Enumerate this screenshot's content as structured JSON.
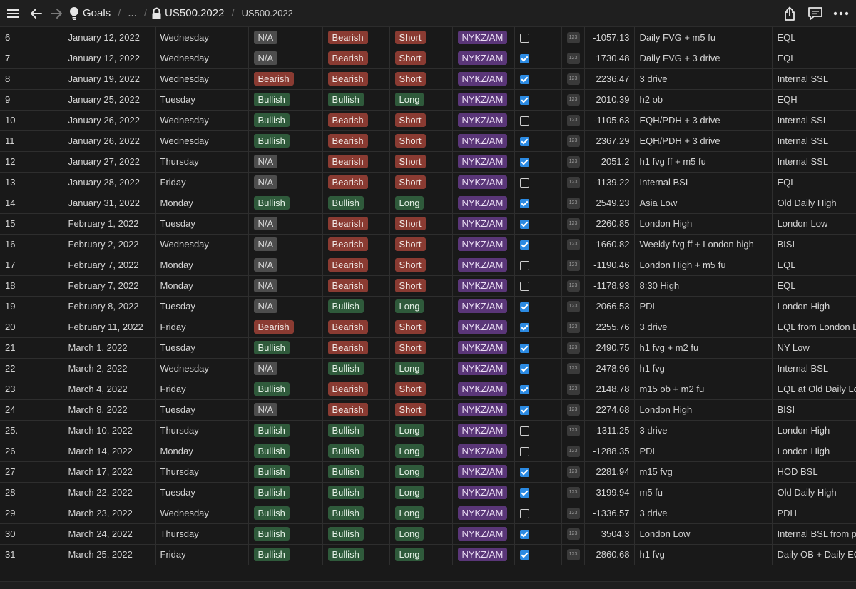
{
  "header": {
    "breadcrumb": [
      "Goals",
      "...",
      "US500.2022",
      "US500.2022"
    ],
    "icons": [
      "menu-icon",
      "back-arrow-icon",
      "forward-arrow-icon",
      "lightbulb-icon",
      "lock-icon",
      "share-icon",
      "comment-icon",
      "more-icon"
    ]
  },
  "colors": {
    "background": "#191919",
    "bearish": "#8a3b32",
    "bullish": "#2f5a3b",
    "na": "#4d4d4d",
    "session": "#5a3678",
    "checkbox_on": "#2b8ae2"
  },
  "rows": [
    {
      "n": "6",
      "date": "January 12, 2022",
      "day": "Wednesday",
      "bias": "N/A",
      "daily": "Bearish",
      "dir": "Short",
      "session": "NYKZ/AM",
      "checked": false,
      "pnl": "-1057.13",
      "setup": "Daily FVG + m5 fu",
      "target": "EQL"
    },
    {
      "n": "7",
      "date": "January 12, 2022",
      "day": "Wednesday",
      "bias": "N/A",
      "daily": "Bearish",
      "dir": "Short",
      "session": "NYKZ/AM",
      "checked": true,
      "pnl": "1730.48",
      "setup": "Daily FVG + 3 drive",
      "target": "EQL"
    },
    {
      "n": "8",
      "date": "January 19, 2022",
      "day": "Wednesday",
      "bias": "Bearish",
      "daily": "Bearish",
      "dir": "Short",
      "session": "NYKZ/AM",
      "checked": true,
      "pnl": "2236.47",
      "setup": "3 drive",
      "target": "Internal SSL"
    },
    {
      "n": "9",
      "date": "January 25, 2022",
      "day": "Tuesday",
      "bias": "Bullish",
      "daily": "Bullish",
      "dir": "Long",
      "session": "NYKZ/AM",
      "checked": true,
      "pnl": "2010.39",
      "setup": "h2 ob",
      "target": "EQH"
    },
    {
      "n": "10",
      "date": "January 26, 2022",
      "day": "Wednesday",
      "bias": "Bullish",
      "daily": "Bearish",
      "dir": "Short",
      "session": "NYKZ/AM",
      "checked": false,
      "pnl": "-1105.63",
      "setup": "EQH/PDH + 3 drive",
      "target": "Internal SSL"
    },
    {
      "n": "11",
      "date": "January 26, 2022",
      "day": "Wednesday",
      "bias": "Bullish",
      "daily": "Bearish",
      "dir": "Short",
      "session": "NYKZ/AM",
      "checked": true,
      "pnl": "2367.29",
      "setup": "EQH/PDH + 3 drive",
      "target": "Internal SSL"
    },
    {
      "n": "12",
      "date": "January 27, 2022",
      "day": "Thursday",
      "bias": "N/A",
      "daily": "Bearish",
      "dir": "Short",
      "session": "NYKZ/AM",
      "checked": true,
      "pnl": "2051.2",
      "setup": "h1 fvg ff + m5 fu",
      "target": "Internal SSL"
    },
    {
      "n": "13",
      "date": "January 28, 2022",
      "day": "Friday",
      "bias": "N/A",
      "daily": "Bearish",
      "dir": "Short",
      "session": "NYKZ/AM",
      "checked": false,
      "pnl": "-1139.22",
      "setup": "Internal BSL",
      "target": "EQL"
    },
    {
      "n": "14",
      "date": "January 31, 2022",
      "day": "Monday",
      "bias": "Bullish",
      "daily": "Bullish",
      "dir": "Long",
      "session": "NYKZ/AM",
      "checked": true,
      "pnl": "2549.23",
      "setup": "Asia Low",
      "target": "Old Daily High"
    },
    {
      "n": "15",
      "date": "February 1, 2022",
      "day": "Tuesday",
      "bias": "N/A",
      "daily": "Bearish",
      "dir": "Short",
      "session": "NYKZ/AM",
      "checked": true,
      "pnl": "2260.85",
      "setup": "London High",
      "target": "London Low"
    },
    {
      "n": "16",
      "date": "February 2, 2022",
      "day": "Wednesday",
      "bias": "N/A",
      "daily": "Bearish",
      "dir": "Short",
      "session": "NYKZ/AM",
      "checked": true,
      "pnl": "1660.82",
      "setup": "Weekly fvg ff + London high",
      "target": "BISI"
    },
    {
      "n": "17",
      "date": "February 7, 2022",
      "day": "Monday",
      "bias": "N/A",
      "daily": "Bearish",
      "dir": "Short",
      "session": "NYKZ/AM",
      "checked": false,
      "pnl": "-1190.46",
      "setup": "London High + m5 fu",
      "target": "EQL"
    },
    {
      "n": "18",
      "date": "February 7, 2022",
      "day": "Monday",
      "bias": "N/A",
      "daily": "Bearish",
      "dir": "Short",
      "session": "NYKZ/AM",
      "checked": false,
      "pnl": "-1178.93",
      "setup": "8:30 High",
      "target": "EQL"
    },
    {
      "n": "19",
      "date": "February 8, 2022",
      "day": "Tuesday",
      "bias": "N/A",
      "daily": "Bullish",
      "dir": "Long",
      "session": "NYKZ/AM",
      "checked": true,
      "pnl": "2066.53",
      "setup": "PDL",
      "target": "London High"
    },
    {
      "n": "20",
      "date": "February 11, 2022",
      "day": "Friday",
      "bias": "Bearish",
      "daily": "Bearish",
      "dir": "Short",
      "session": "NYKZ/AM",
      "checked": true,
      "pnl": "2255.76",
      "setup": "3 drive",
      "target": "EQL from London L"
    },
    {
      "n": "21",
      "date": "March 1, 2022",
      "day": "Tuesday",
      "bias": "Bullish",
      "daily": "Bearish",
      "dir": "Short",
      "session": "NYKZ/AM",
      "checked": true,
      "pnl": "2490.75",
      "setup": "h1 fvg + m2 fu",
      "target": "NY Low"
    },
    {
      "n": "22",
      "date": "March 2, 2022",
      "day": "Wednesday",
      "bias": "N/A",
      "daily": "Bullish",
      "dir": "Long",
      "session": "NYKZ/AM",
      "checked": true,
      "pnl": "2478.96",
      "setup": "h1 fvg",
      "target": "Internal BSL"
    },
    {
      "n": "23",
      "date": "March 4, 2022",
      "day": "Friday",
      "bias": "Bullish",
      "daily": "Bearish",
      "dir": "Short",
      "session": "NYKZ/AM",
      "checked": true,
      "pnl": "2148.78",
      "setup": "m15 ob + m2 fu",
      "target": "EQL at Old Daily Lo"
    },
    {
      "n": "24",
      "date": "March 8, 2022",
      "day": "Tuesday",
      "bias": "N/A",
      "daily": "Bearish",
      "dir": "Short",
      "session": "NYKZ/AM",
      "checked": true,
      "pnl": "2274.68",
      "setup": "London High",
      "target": "BISI"
    },
    {
      "n": "25.",
      "date": "March 10, 2022",
      "day": "Thursday",
      "bias": "Bullish",
      "daily": "Bullish",
      "dir": "Long",
      "session": "NYKZ/AM",
      "checked": false,
      "pnl": "-1311.25",
      "setup": "3 drive",
      "target": "London High"
    },
    {
      "n": "26",
      "date": "March 14, 2022",
      "day": "Monday",
      "bias": "Bullish",
      "daily": "Bullish",
      "dir": "Long",
      "session": "NYKZ/AM",
      "checked": false,
      "pnl": "-1288.35",
      "setup": "PDL",
      "target": "London High"
    },
    {
      "n": "27",
      "date": "March 17, 2022",
      "day": "Thursday",
      "bias": "Bullish",
      "daily": "Bullish",
      "dir": "Long",
      "session": "NYKZ/AM",
      "checked": true,
      "pnl": "2281.94",
      "setup": "m15 fvg",
      "target": "HOD BSL"
    },
    {
      "n": "28",
      "date": "March 22, 2022",
      "day": "Tuesday",
      "bias": "Bullish",
      "daily": "Bullish",
      "dir": "Long",
      "session": "NYKZ/AM",
      "checked": true,
      "pnl": "3199.94",
      "setup": "m5 fu",
      "target": "Old Daily High"
    },
    {
      "n": "29",
      "date": "March 23, 2022",
      "day": "Wednesday",
      "bias": "Bullish",
      "daily": "Bullish",
      "dir": "Long",
      "session": "NYKZ/AM",
      "checked": false,
      "pnl": "-1336.57",
      "setup": "3 drive",
      "target": "PDH"
    },
    {
      "n": "30",
      "date": "March 24, 2022",
      "day": "Thursday",
      "bias": "Bullish",
      "daily": "Bullish",
      "dir": "Long",
      "session": "NYKZ/AM",
      "checked": true,
      "pnl": "3504.3",
      "setup": "London Low",
      "target": "Internal BSL from p"
    },
    {
      "n": "31",
      "date": "March 25, 2022",
      "day": "Friday",
      "bias": "Bullish",
      "daily": "Bullish",
      "dir": "Long",
      "session": "NYKZ/AM",
      "checked": true,
      "pnl": "2860.68",
      "setup": "h1 fvg",
      "target": "Daily OB + Daily EQ"
    }
  ]
}
